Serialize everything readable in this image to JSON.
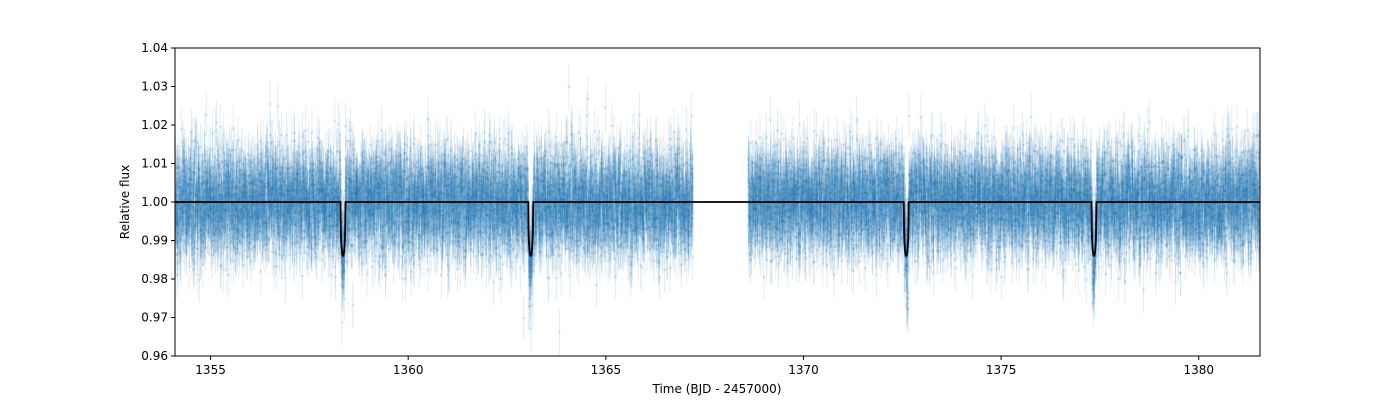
{
  "chart_data": {
    "type": "scatter",
    "title": "",
    "xlabel": "Time (BJD - 2457000)",
    "ylabel": "Relative flux",
    "xlim": [
      1354.1,
      1381.55
    ],
    "ylim": [
      0.96,
      1.04
    ],
    "xticks": [
      1355,
      1360,
      1365,
      1370,
      1375,
      1380
    ],
    "yticks": [
      0.96,
      0.97,
      0.98,
      0.99,
      1.0,
      1.01,
      1.02,
      1.03,
      1.04
    ],
    "grid": false,
    "legend": "none",
    "observations": {
      "segments": [
        [
          1354.1,
          1367.2
        ],
        [
          1368.6,
          1381.55
        ]
      ],
      "flux_median": 1.0,
      "flux_scatter": 0.0065,
      "error_bar": 0.006,
      "color": "#1f77b4"
    },
    "transit_model": {
      "baseline": 1.0,
      "depth": 0.014,
      "duration_days": 0.12,
      "centers": [
        1358.35,
        1363.1,
        1372.6,
        1377.35
      ],
      "color": "#000000"
    }
  }
}
